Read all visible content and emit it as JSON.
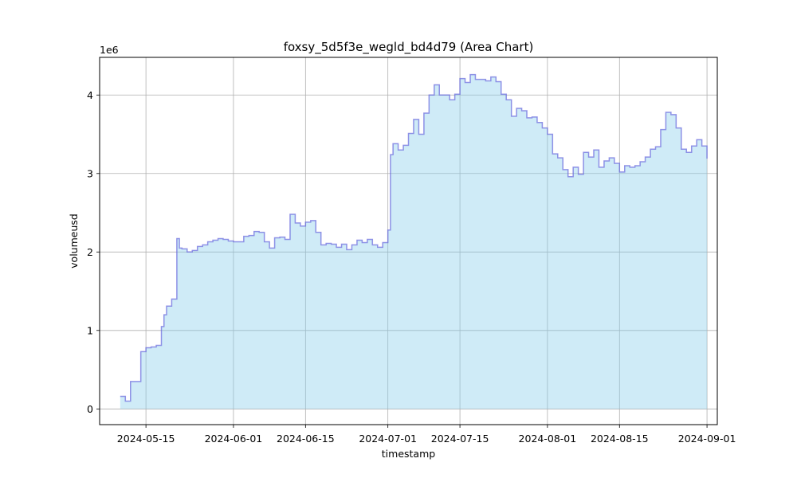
{
  "colors": {
    "fill": "#87ceeb",
    "line": "#6666dd",
    "grid": "#b0b0b0",
    "axis": "#000000",
    "background": "#ffffff"
  },
  "chart_data": {
    "type": "area",
    "title": "foxsy_5d5f3e_wegld_bd4d79 (Area Chart)",
    "xlabel": "timestamp",
    "ylabel": "volumeusd",
    "y_offset_label": "1e6",
    "step": true,
    "grid": true,
    "xlim": [
      "2024-05-06",
      "2024-09-03"
    ],
    "ylim": [
      -200000,
      4480000
    ],
    "x_ticks": [
      {
        "date": "2024-05-15",
        "label": "2024-05-15"
      },
      {
        "date": "2024-06-01",
        "label": "2024-06-01"
      },
      {
        "date": "2024-06-15",
        "label": "2024-06-15"
      },
      {
        "date": "2024-07-01",
        "label": "2024-07-01"
      },
      {
        "date": "2024-07-15",
        "label": "2024-07-15"
      },
      {
        "date": "2024-08-01",
        "label": "2024-08-01"
      },
      {
        "date": "2024-08-15",
        "label": "2024-08-15"
      },
      {
        "date": "2024-09-01",
        "label": "2024-09-01"
      }
    ],
    "y_ticks": [
      {
        "value": 0,
        "label": "0"
      },
      {
        "value": 1000000,
        "label": "1"
      },
      {
        "value": 2000000,
        "label": "2"
      },
      {
        "value": 3000000,
        "label": "3"
      },
      {
        "value": 4000000,
        "label": "4"
      }
    ],
    "series": [
      {
        "points": [
          [
            "2024-05-10",
            160000
          ],
          [
            "2024-05-11",
            100000
          ],
          [
            "2024-05-12",
            350000
          ],
          [
            "2024-05-14",
            730000
          ],
          [
            "2024-05-15",
            780000
          ],
          [
            "2024-05-16",
            790000
          ],
          [
            "2024-05-17",
            810000
          ],
          [
            "2024-05-18",
            1050000
          ],
          [
            "2024-05-18T12:00",
            1200000
          ],
          [
            "2024-05-19",
            1310000
          ],
          [
            "2024-05-20",
            1400000
          ],
          [
            "2024-05-21",
            2170000
          ],
          [
            "2024-05-21T12:00",
            2050000
          ],
          [
            "2024-05-22",
            2040000
          ],
          [
            "2024-05-23",
            2000000
          ],
          [
            "2024-05-24",
            2020000
          ],
          [
            "2024-05-25",
            2070000
          ],
          [
            "2024-05-26",
            2090000
          ],
          [
            "2024-05-27",
            2130000
          ],
          [
            "2024-05-28",
            2150000
          ],
          [
            "2024-05-29",
            2170000
          ],
          [
            "2024-05-30",
            2160000
          ],
          [
            "2024-05-31",
            2140000
          ],
          [
            "2024-06-01",
            2130000
          ],
          [
            "2024-06-03",
            2200000
          ],
          [
            "2024-06-04",
            2210000
          ],
          [
            "2024-06-05",
            2260000
          ],
          [
            "2024-06-06",
            2250000
          ],
          [
            "2024-06-07",
            2130000
          ],
          [
            "2024-06-08",
            2050000
          ],
          [
            "2024-06-09",
            2180000
          ],
          [
            "2024-06-10",
            2190000
          ],
          [
            "2024-06-11",
            2160000
          ],
          [
            "2024-06-12",
            2480000
          ],
          [
            "2024-06-13",
            2370000
          ],
          [
            "2024-06-14",
            2330000
          ],
          [
            "2024-06-15",
            2380000
          ],
          [
            "2024-06-16",
            2400000
          ],
          [
            "2024-06-17",
            2250000
          ],
          [
            "2024-06-18",
            2090000
          ],
          [
            "2024-06-19",
            2110000
          ],
          [
            "2024-06-20",
            2100000
          ],
          [
            "2024-06-21",
            2060000
          ],
          [
            "2024-06-22",
            2100000
          ],
          [
            "2024-06-23",
            2030000
          ],
          [
            "2024-06-24",
            2090000
          ],
          [
            "2024-06-25",
            2150000
          ],
          [
            "2024-06-26",
            2120000
          ],
          [
            "2024-06-27",
            2160000
          ],
          [
            "2024-06-28",
            2090000
          ],
          [
            "2024-06-29",
            2060000
          ],
          [
            "2024-06-30",
            2120000
          ],
          [
            "2024-07-01",
            2280000
          ],
          [
            "2024-07-01T12:00",
            3240000
          ],
          [
            "2024-07-02",
            3380000
          ],
          [
            "2024-07-03",
            3300000
          ],
          [
            "2024-07-04",
            3360000
          ],
          [
            "2024-07-05",
            3510000
          ],
          [
            "2024-07-06",
            3690000
          ],
          [
            "2024-07-07",
            3500000
          ],
          [
            "2024-07-08",
            3770000
          ],
          [
            "2024-07-09",
            4000000
          ],
          [
            "2024-07-10",
            4130000
          ],
          [
            "2024-07-11",
            4000000
          ],
          [
            "2024-07-13",
            3940000
          ],
          [
            "2024-07-14",
            4010000
          ],
          [
            "2024-07-15",
            4210000
          ],
          [
            "2024-07-16",
            4160000
          ],
          [
            "2024-07-17",
            4260000
          ],
          [
            "2024-07-18",
            4200000
          ],
          [
            "2024-07-20",
            4180000
          ],
          [
            "2024-07-21",
            4230000
          ],
          [
            "2024-07-22",
            4170000
          ],
          [
            "2024-07-23",
            4010000
          ],
          [
            "2024-07-24",
            3940000
          ],
          [
            "2024-07-25",
            3730000
          ],
          [
            "2024-07-26",
            3830000
          ],
          [
            "2024-07-27",
            3800000
          ],
          [
            "2024-07-28",
            3710000
          ],
          [
            "2024-07-29",
            3720000
          ],
          [
            "2024-07-30",
            3650000
          ],
          [
            "2024-07-31",
            3580000
          ],
          [
            "2024-08-01",
            3500000
          ],
          [
            "2024-08-02",
            3250000
          ],
          [
            "2024-08-03",
            3200000
          ],
          [
            "2024-08-04",
            3050000
          ],
          [
            "2024-08-05",
            2960000
          ],
          [
            "2024-08-06",
            3080000
          ],
          [
            "2024-08-07",
            2990000
          ],
          [
            "2024-08-08",
            3270000
          ],
          [
            "2024-08-09",
            3210000
          ],
          [
            "2024-08-10",
            3300000
          ],
          [
            "2024-08-11",
            3080000
          ],
          [
            "2024-08-12",
            3160000
          ],
          [
            "2024-08-13",
            3200000
          ],
          [
            "2024-08-14",
            3130000
          ],
          [
            "2024-08-15",
            3020000
          ],
          [
            "2024-08-16",
            3100000
          ],
          [
            "2024-08-17",
            3080000
          ],
          [
            "2024-08-18",
            3100000
          ],
          [
            "2024-08-19",
            3150000
          ],
          [
            "2024-08-20",
            3210000
          ],
          [
            "2024-08-21",
            3310000
          ],
          [
            "2024-08-22",
            3340000
          ],
          [
            "2024-08-23",
            3560000
          ],
          [
            "2024-08-24",
            3780000
          ],
          [
            "2024-08-25",
            3750000
          ],
          [
            "2024-08-26",
            3580000
          ],
          [
            "2024-08-27",
            3310000
          ],
          [
            "2024-08-28",
            3270000
          ],
          [
            "2024-08-29",
            3350000
          ],
          [
            "2024-08-30",
            3430000
          ],
          [
            "2024-08-31",
            3350000
          ],
          [
            "2024-09-01",
            3190000
          ]
        ]
      }
    ]
  }
}
